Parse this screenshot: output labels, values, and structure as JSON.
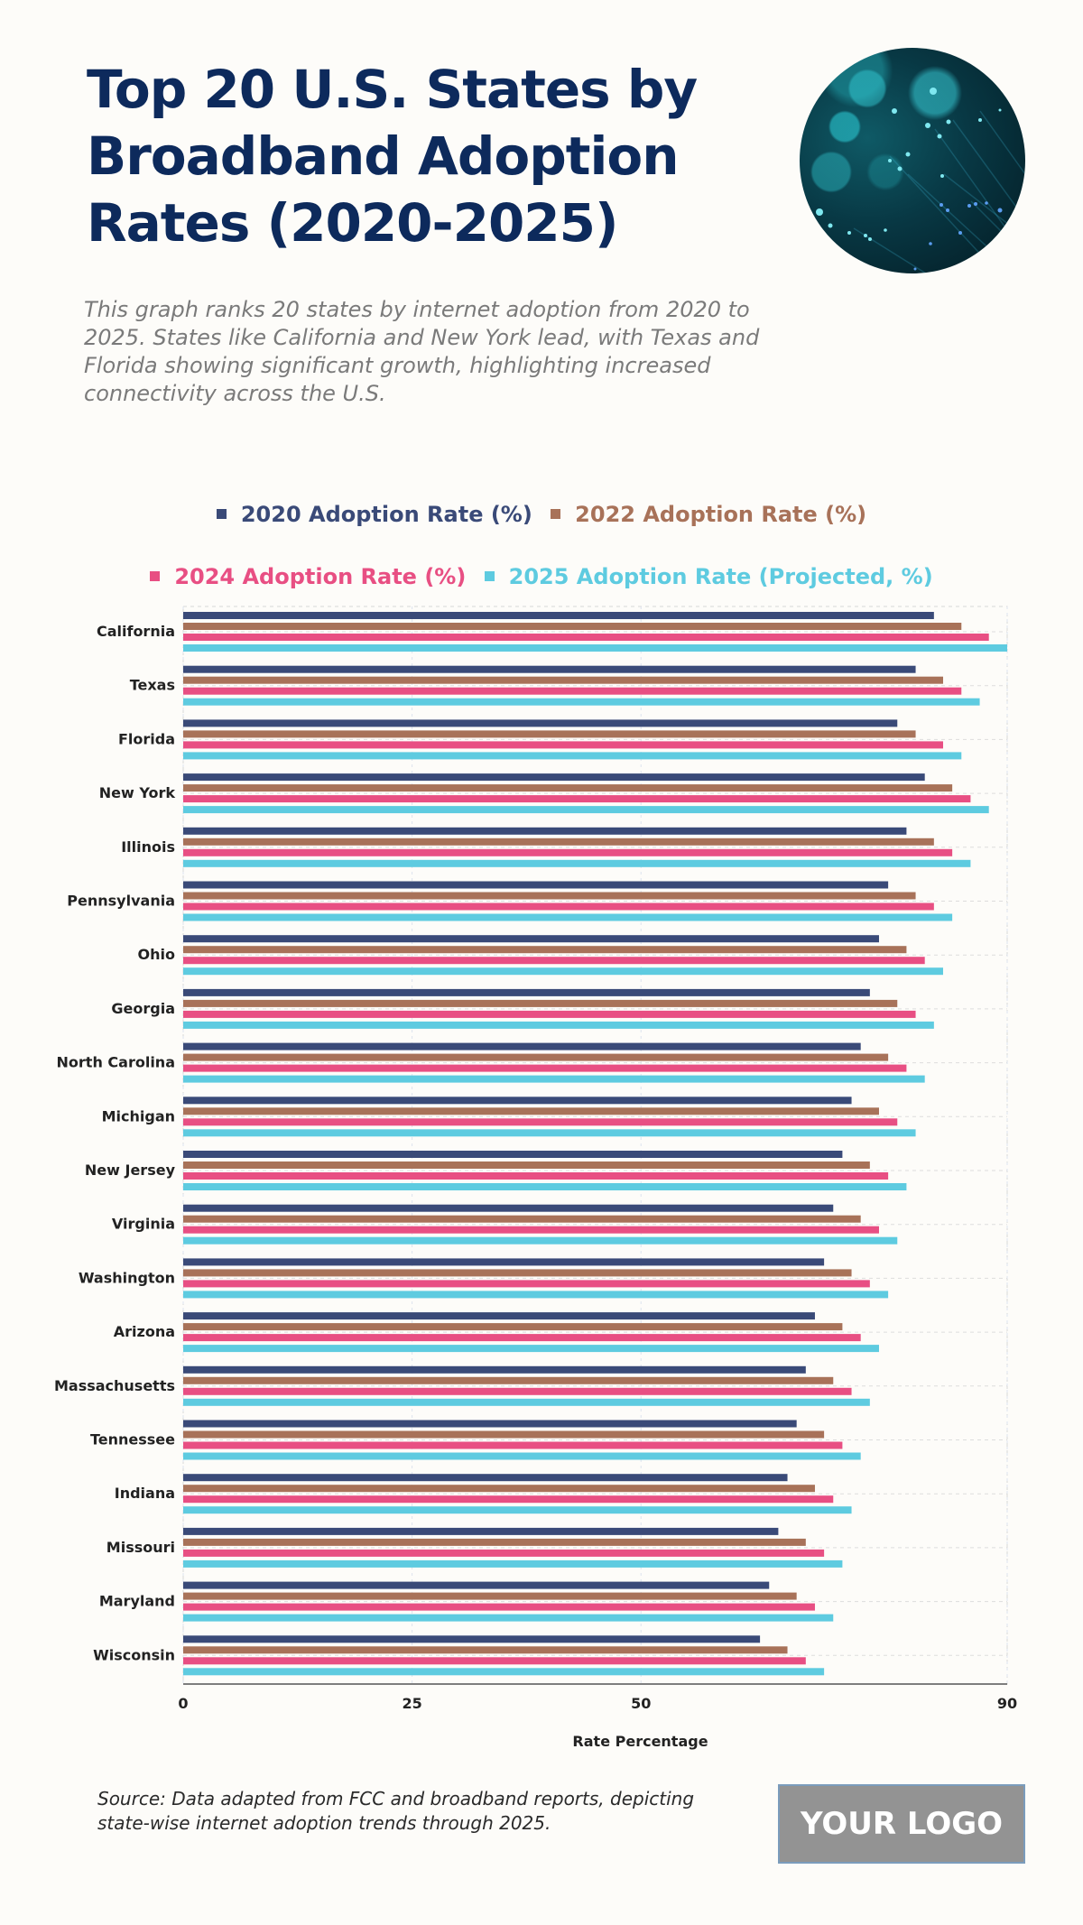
{
  "header": {
    "title": "Top 20 U.S. States by Broadband Adoption Rates (2020-2025)",
    "subtitle": "This graph ranks 20 states by internet adoption from 2020 to 2025. States like California and New York lead, with Texas and Florida showing significant growth, highlighting increased connectivity across the U.S.",
    "image": "fiber-optic-lights-photo"
  },
  "footer": {
    "source": "Source: Data adapted from FCC and broadband reports, depicting state-wise internet adoption trends through 2025.",
    "logo": "YOUR LOGO"
  },
  "chart_data": {
    "type": "bar",
    "orientation": "horizontal",
    "title": "Top 20 U.S. States by Broadband Adoption Rates (2020-2025)",
    "xlabel": "Rate Percentage",
    "ylabel": "",
    "xlim": [
      0,
      90
    ],
    "xticks": [
      0,
      25,
      50,
      90
    ],
    "grid": true,
    "legend_position": "top-center",
    "categories": [
      "California",
      "Texas",
      "Florida",
      "New York",
      "Illinois",
      "Pennsylvania",
      "Ohio",
      "Georgia",
      "North Carolina",
      "Michigan",
      "New Jersey",
      "Virginia",
      "Washington",
      "Arizona",
      "Massachusetts",
      "Tennessee",
      "Indiana",
      "Missouri",
      "Maryland",
      "Wisconsin"
    ],
    "series": [
      {
        "name": "2020 Adoption Rate (%)",
        "color": "#3a4a78",
        "values": [
          82,
          80,
          78,
          81,
          79,
          77,
          76,
          75,
          74,
          73,
          72,
          71,
          70,
          69,
          68,
          67,
          66,
          65,
          64,
          63
        ]
      },
      {
        "name": "2022 Adoption Rate (%)",
        "color": "#a87259",
        "values": [
          85,
          83,
          80,
          84,
          82,
          80,
          79,
          78,
          77,
          76,
          75,
          74,
          73,
          72,
          71,
          70,
          69,
          68,
          67,
          66
        ]
      },
      {
        "name": "2024 Adoption Rate (%)",
        "color": "#e84f83",
        "values": [
          88,
          85,
          83,
          86,
          84,
          82,
          81,
          80,
          79,
          78,
          77,
          76,
          75,
          74,
          73,
          72,
          71,
          70,
          69,
          68
        ]
      },
      {
        "name": "2025 Adoption Rate (Projected, %)",
        "color": "#5ecbe0",
        "values": [
          90,
          87,
          85,
          88,
          86,
          84,
          83,
          82,
          81,
          80,
          79,
          78,
          77,
          76,
          75,
          74,
          73,
          72,
          71,
          70
        ]
      }
    ]
  }
}
